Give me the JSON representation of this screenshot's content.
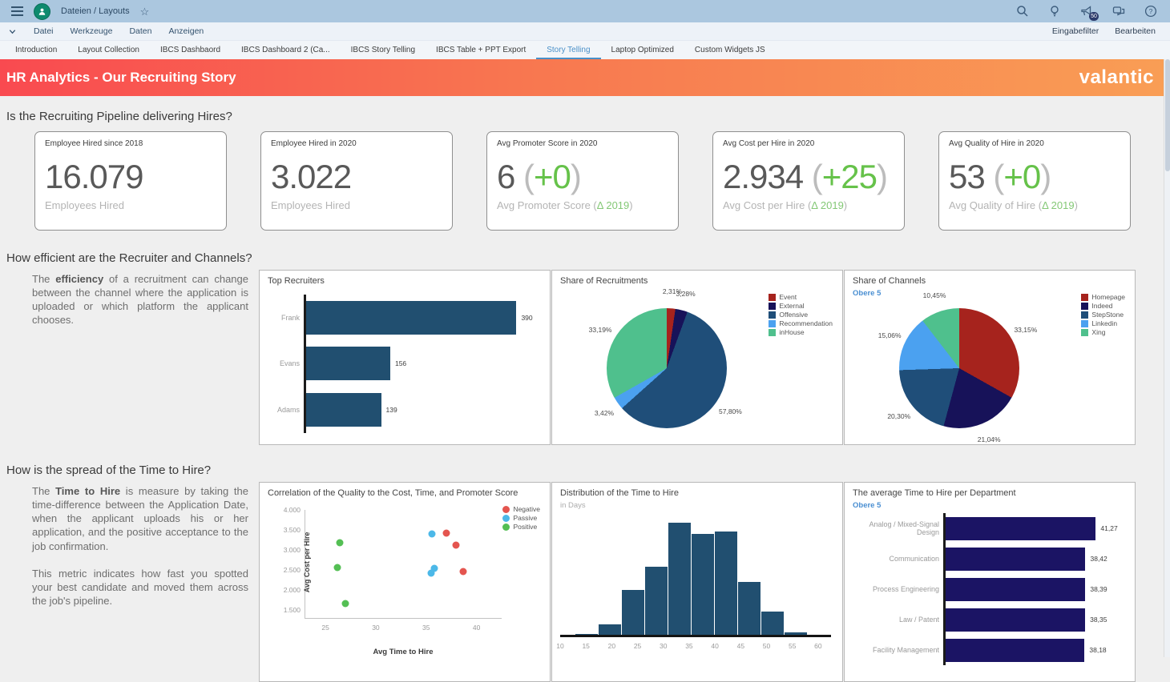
{
  "shell": {
    "breadcrumb": "Dateien / Layouts",
    "menu_items": [
      "Datei",
      "Werkzeuge",
      "Daten",
      "Anzeigen"
    ],
    "right_links": [
      "Eingabefilter",
      "Bearbeiten"
    ],
    "notification_badge": "50",
    "tabs": [
      "Introduction",
      "Layout Collection",
      "IBCS Dashbaord",
      "IBCS Dashboard 2 (Ca...",
      "IBCS Story Telling",
      "IBCS Table + PPT Export",
      "Story Telling",
      "Laptop Optimized",
      "Custom Widgets JS"
    ],
    "active_tab": "Story Telling"
  },
  "banner": {
    "title": "HR Analytics - Our Recruiting Story",
    "logo": "valantic",
    "gradient": [
      "#f94a50",
      "#f99e55"
    ]
  },
  "section1": {
    "heading": "Is the Recruiting Pipeline delivering Hires?"
  },
  "section2": {
    "heading": "How efficient are the Recruiter and Channels?",
    "paragraphs": [
      [
        {
          "t": "The "
        },
        {
          "t": "efficiency",
          "b": true
        },
        {
          "t": " of a recruitment can change between the channel where the application is uploaded or which platform the applicant chooses."
        }
      ]
    ]
  },
  "section3": {
    "heading": "How is the spread of the Time to Hire?",
    "paragraphs": [
      [
        {
          "t": "The "
        },
        {
          "t": "Time to Hire",
          "b": true
        },
        {
          "t": " is measure by taking the time-difference between the Application Date, when the applicant uploads his or her application, and the positive acceptance to the job confirmation."
        }
      ],
      [
        {
          "t": "This metric indicates how fast you spotted your best candidate and moved them across the job's pipeline."
        }
      ]
    ]
  },
  "kpis": [
    {
      "title": "Employee Hired since 2018",
      "value": "16.079",
      "subtitle": "Employees Hired"
    },
    {
      "title": "Employee Hired in 2020",
      "value": "3.022",
      "subtitle": "Employees Hired"
    },
    {
      "title": "Avg Promoter Score in 2020",
      "value": "6",
      "delta": "+0",
      "subtitle": "Avg Promoter Score",
      "delta_ref": "Δ 2019"
    },
    {
      "title": "Avg Cost per Hire in 2020",
      "value": "2.934",
      "delta": "+25",
      "subtitle": "Avg Cost per Hire",
      "delta_ref": "Δ 2019"
    },
    {
      "title": "Avg Quality of Hire in 2020",
      "value": "53",
      "delta": "+0",
      "subtitle": "Avg Quality of Hire",
      "delta_ref": "Δ 2019"
    }
  ],
  "chart_data": [
    {
      "id": "top_recruiters",
      "type": "bar",
      "orientation": "horizontal",
      "title": "Top Recruiters",
      "categories": [
        "Frank",
        "Evans",
        "Adams"
      ],
      "values": [
        390,
        156,
        139
      ],
      "value_labels": [
        "390",
        "156",
        "139"
      ],
      "bar_color": "#214f70",
      "xmax": 425,
      "grid": false
    },
    {
      "id": "share_recruitments",
      "type": "pie",
      "title": "Share of Recruitments",
      "legend_position": "right",
      "slices": [
        {
          "label": "Event",
          "value": 2.31,
          "text": "2,31%",
          "color": "#a6231d"
        },
        {
          "label": "External",
          "value": 3.28,
          "text": "3,28%",
          "color": "#171259"
        },
        {
          "label": "Offensive",
          "value": 57.8,
          "text": "57,80%",
          "color": "#1f4e79"
        },
        {
          "label": "Recommendation",
          "value": 3.42,
          "text": "3,42%",
          "color": "#4ba1f0"
        },
        {
          "label": "inHouse",
          "value": 33.19,
          "text": "33,19%",
          "color": "#4fc08d"
        }
      ]
    },
    {
      "id": "share_channels",
      "type": "pie",
      "title": "Share of Channels",
      "subtitle": "Obere 5",
      "legend_position": "right",
      "slices": [
        {
          "label": "Homepage",
          "value": 33.15,
          "text": "33,15%",
          "color": "#a6231d"
        },
        {
          "label": "Indeed",
          "value": 21.04,
          "text": "21,04%",
          "color": "#171259"
        },
        {
          "label": "StepStone",
          "value": 20.3,
          "text": "20,30%",
          "color": "#1f4e79"
        },
        {
          "label": "Linkedin",
          "value": 15.06,
          "text": "15,06%",
          "color": "#4ba1f0"
        },
        {
          "label": "Xing",
          "value": 10.45,
          "text": "10,45%",
          "color": "#4fc08d"
        }
      ]
    },
    {
      "id": "correlation",
      "type": "scatter",
      "title": "Correlation of the Quality to the Cost, Time, and Promoter Score",
      "xlabel": "Avg Time to Hire",
      "ylabel": "Avg Cost per Hire",
      "xlim": [
        23,
        42.5
      ],
      "ylim": [
        1300,
        4000
      ],
      "xticks": [
        25,
        30,
        35,
        40
      ],
      "yticks": [
        1500,
        2000,
        2500,
        3000,
        3500,
        4000
      ],
      "ytick_labels": [
        "1.500",
        "2.000",
        "2.500",
        "3.000",
        "3.500",
        "4.000"
      ],
      "legend_position": "right",
      "series": [
        {
          "name": "Negative",
          "color": "#e4554f",
          "points": [
            [
              37.0,
              3420
            ],
            [
              38.0,
              3130
            ],
            [
              38.7,
              2470
            ]
          ]
        },
        {
          "name": "Passive",
          "color": "#4cb8e8",
          "points": [
            [
              35.6,
              3410
            ],
            [
              35.8,
              2540
            ],
            [
              35.5,
              2420
            ]
          ]
        },
        {
          "name": "Positive",
          "color": "#54bf54",
          "points": [
            [
              26.4,
              3190
            ],
            [
              26.2,
              2560
            ],
            [
              27.0,
              1670
            ]
          ]
        }
      ]
    },
    {
      "id": "tth_distribution",
      "type": "bar",
      "subtype": "histogram",
      "title": "Distribution of the Time to Hire",
      "subtitle": "in Days",
      "xlim": [
        10,
        62.5
      ],
      "xticks": [
        10,
        15,
        20,
        25,
        30,
        35,
        40,
        45,
        50,
        55,
        60
      ],
      "bin_start": 13,
      "bin_width": 4.5,
      "relative_heights": [
        1,
        9,
        40,
        61,
        100,
        90,
        92,
        47,
        21,
        2
      ],
      "bar_color": "#214f70"
    },
    {
      "id": "tth_department",
      "type": "bar",
      "orientation": "horizontal",
      "title": "The average Time to Hire per Department",
      "subtitle": "Obere 5",
      "categories": [
        "Analog / Mixed-Signal Design",
        "Communication",
        "Process Engineering",
        "Law / Patent",
        "Facility Management"
      ],
      "values": [
        41.27,
        38.42,
        38.39,
        38.35,
        38.18
      ],
      "value_labels": [
        "41,27",
        "38,42",
        "38,39",
        "38,35",
        "38,18"
      ],
      "bar_color": "#1b1464",
      "xmax": 48,
      "grid": false
    }
  ]
}
